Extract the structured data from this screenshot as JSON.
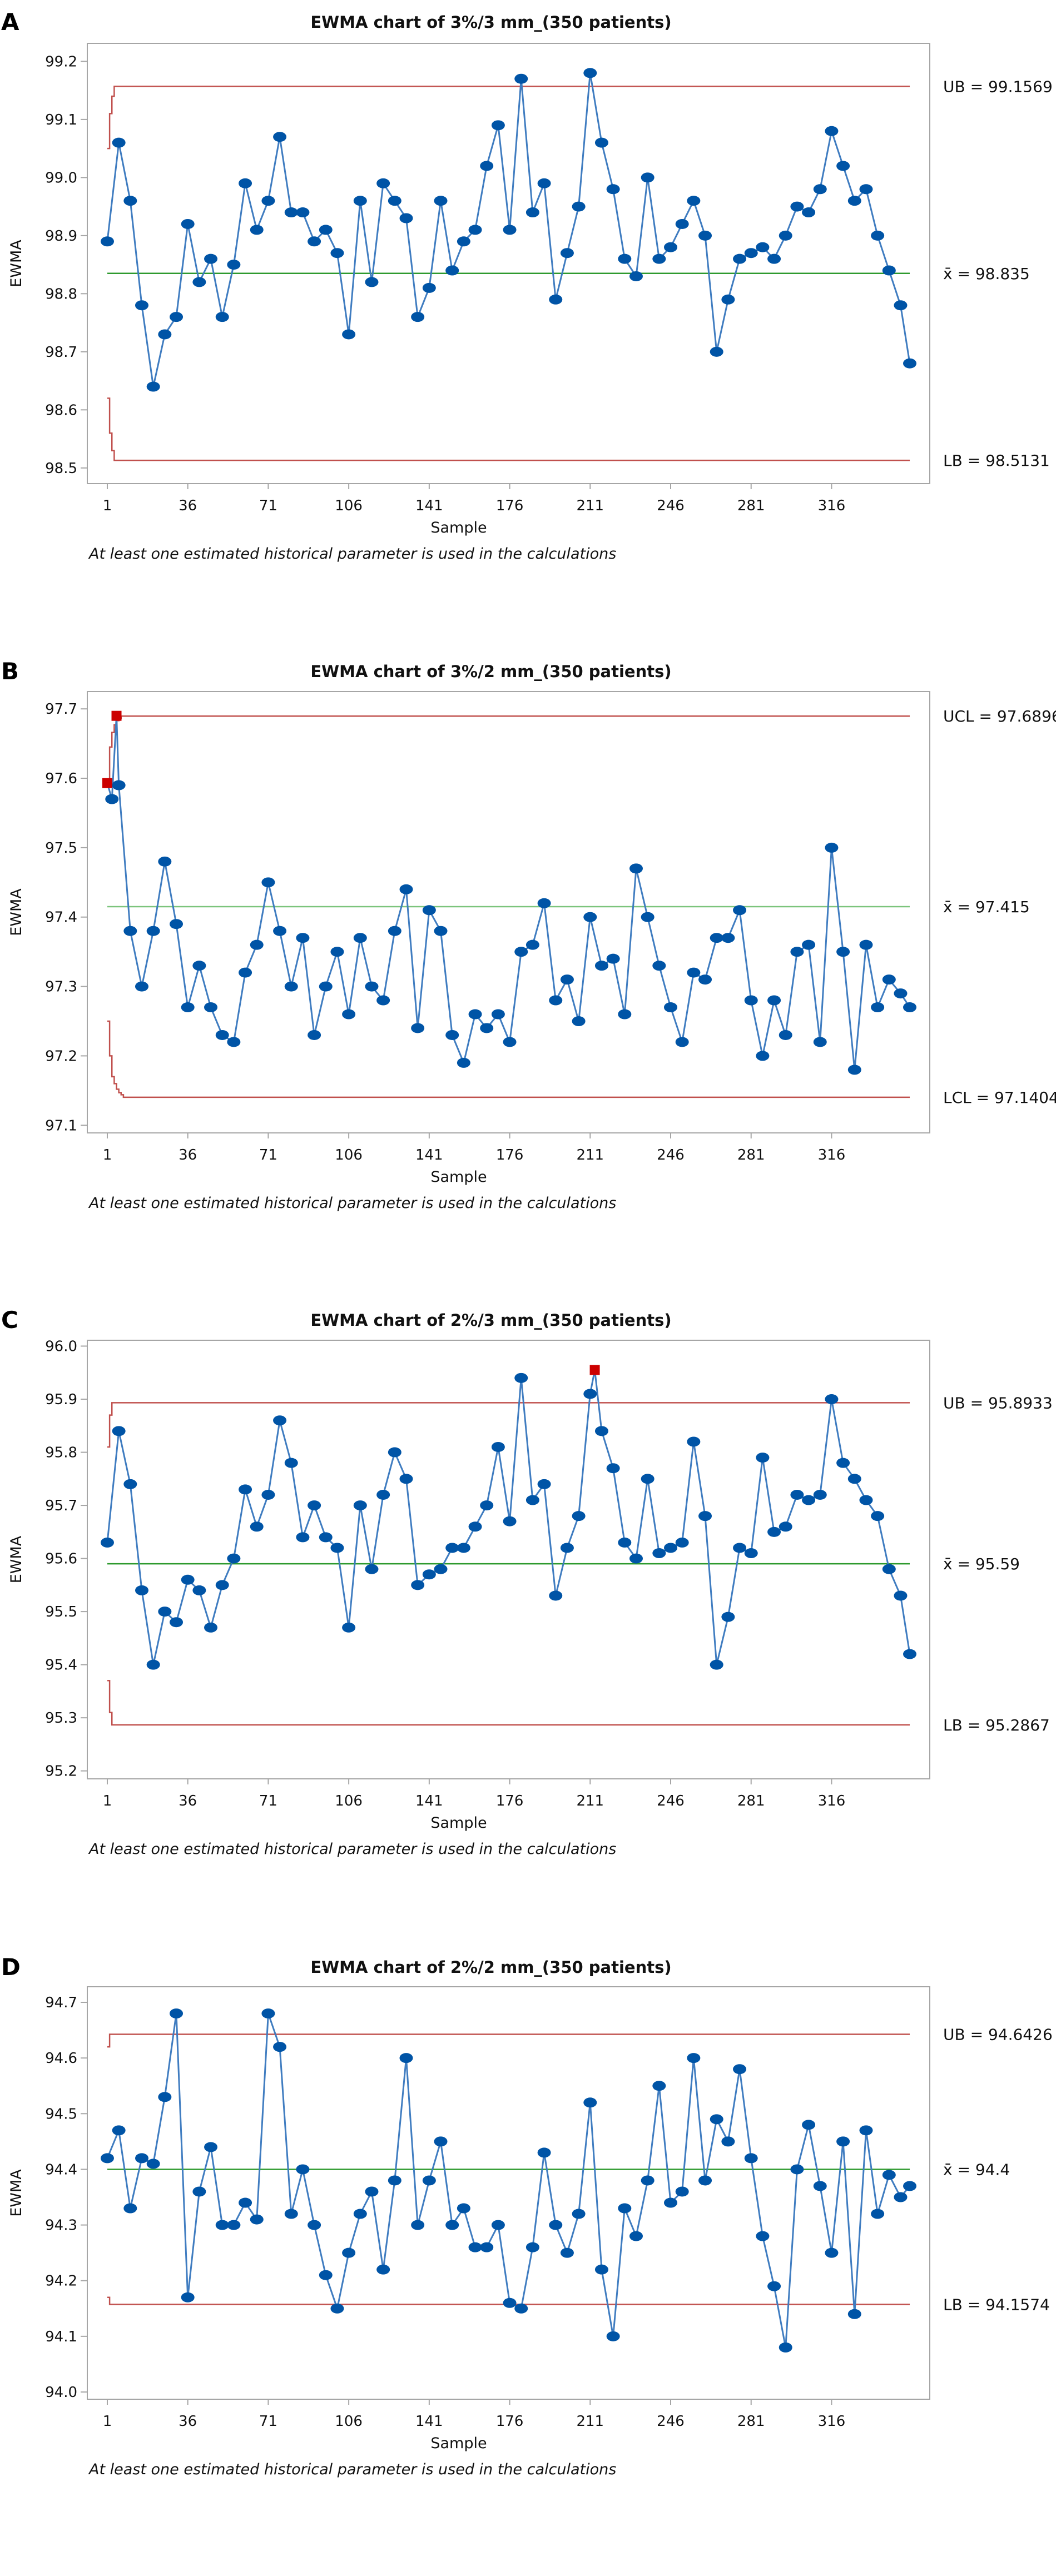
{
  "chart_data": [
    {
      "type": "line",
      "panel": "A",
      "title": "EWMA chart of 3%/3 mm_(350 patients)",
      "xlabel": "Sample",
      "ylabel": "EWMA",
      "footnote": "At least one estimated historical parameter is used in the calculations",
      "xticks": [
        1,
        36,
        71,
        106,
        141,
        176,
        211,
        246,
        281,
        316
      ],
      "yticks": [
        98.5,
        98.6,
        98.7,
        98.8,
        98.9,
        99.0,
        99.1,
        99.2
      ],
      "ytick_labels": [
        "98.5",
        "98.6",
        "98.7",
        "98.8",
        "98.9",
        "99.0",
        "99.1",
        "99.2"
      ],
      "xlim": [
        -7.7,
        358.7
      ],
      "ylim": [
        98.473,
        99.231
      ],
      "upper": {
        "label": "UB = 99.1569",
        "value": 99.1569,
        "startup": [
          99.05,
          99.11,
          99.14
        ]
      },
      "center": {
        "label": "x̄ = 98.835",
        "value": 98.835
      },
      "lower": {
        "label": "LB = 98.5131",
        "value": 98.5131,
        "startup": [
          98.62,
          98.56,
          98.53
        ]
      },
      "x": [
        1,
        6,
        11,
        16,
        21,
        26,
        31,
        36,
        41,
        46,
        51,
        56,
        61,
        66,
        71,
        76,
        81,
        86,
        91,
        96,
        101,
        106,
        111,
        116,
        121,
        126,
        131,
        136,
        141,
        146,
        151,
        156,
        161,
        166,
        171,
        176,
        181,
        186,
        191,
        196,
        201,
        206,
        211,
        216,
        221,
        226,
        231,
        236,
        241,
        246,
        251,
        256,
        261,
        266,
        271,
        276,
        281,
        286,
        291,
        296,
        301,
        306,
        311,
        316,
        321,
        326,
        331,
        336,
        341,
        346,
        350
      ],
      "values": [
        98.89,
        99.06,
        98.96,
        98.78,
        98.64,
        98.73,
        98.76,
        98.92,
        98.82,
        98.86,
        98.76,
        98.85,
        98.99,
        98.91,
        98.96,
        99.07,
        98.94,
        98.94,
        98.89,
        98.91,
        98.87,
        98.73,
        98.96,
        98.82,
        98.99,
        98.96,
        98.93,
        98.76,
        98.81,
        98.96,
        98.84,
        98.89,
        98.91,
        99.02,
        99.09,
        98.91,
        99.17,
        98.94,
        98.99,
        98.79,
        98.87,
        98.95,
        99.18,
        99.06,
        98.98,
        98.86,
        98.83,
        99.0,
        98.86,
        98.88,
        98.92,
        98.96,
        98.9,
        98.7,
        98.79,
        98.86,
        98.87,
        98.88,
        98.86,
        98.9,
        98.95,
        98.94,
        98.98,
        99.08,
        99.02,
        98.96,
        98.98,
        98.9,
        98.84,
        98.78,
        98.68
      ],
      "flagged": [],
      "colors": {
        "points": "#0054a6",
        "line": "#3f7cc0",
        "limits": "#c0504d",
        "center": "#2e9a2e",
        "flagged": "#cc0000"
      }
    },
    {
      "type": "line",
      "panel": "B",
      "title": "EWMA chart of 3%/2 mm_(350 patients)",
      "xlabel": "Sample",
      "ylabel": "EWMA",
      "footnote": "At least one estimated historical parameter is used in the calculations",
      "xticks": [
        1,
        36,
        71,
        106,
        141,
        176,
        211,
        246,
        281,
        316
      ],
      "yticks": [
        97.1,
        97.2,
        97.3,
        97.4,
        97.5,
        97.6,
        97.7
      ],
      "ytick_labels": [
        "97.1",
        "97.2",
        "97.3",
        "97.4",
        "97.5",
        "97.6",
        "97.7"
      ],
      "xlim": [
        -7.7,
        358.7
      ],
      "ylim": [
        97.089,
        97.725
      ],
      "upper": {
        "label": "UCL = 97.6896",
        "value": 97.6896,
        "startup": [
          97.594,
          97.645,
          97.666,
          97.677,
          97.683,
          97.686
        ]
      },
      "center": {
        "label": "x̄ = 97.415",
        "value": 97.415
      },
      "lower": {
        "label": "LCL = 97.1404",
        "value": 97.1404,
        "startup": [
          97.25,
          97.2,
          97.17,
          97.16,
          97.152,
          97.147,
          97.144
        ]
      },
      "x": [
        1,
        3,
        5,
        6,
        11,
        16,
        21,
        26,
        31,
        36,
        41,
        46,
        51,
        56,
        61,
        66,
        71,
        76,
        81,
        86,
        91,
        96,
        101,
        106,
        111,
        116,
        121,
        126,
        131,
        136,
        141,
        146,
        151,
        156,
        161,
        166,
        171,
        176,
        181,
        186,
        191,
        196,
        201,
        206,
        211,
        216,
        221,
        226,
        231,
        236,
        241,
        246,
        251,
        256,
        261,
        266,
        271,
        276,
        281,
        286,
        291,
        296,
        301,
        306,
        311,
        316,
        321,
        326,
        331,
        336,
        341,
        346,
        350
      ],
      "values": [
        97.593,
        97.57,
        97.69,
        97.59,
        97.38,
        97.3,
        97.38,
        97.48,
        97.39,
        97.27,
        97.33,
        97.27,
        97.23,
        97.22,
        97.32,
        97.36,
        97.45,
        97.38,
        97.3,
        97.37,
        97.23,
        97.3,
        97.35,
        97.26,
        97.37,
        97.3,
        97.28,
        97.38,
        97.44,
        97.24,
        97.41,
        97.38,
        97.23,
        97.19,
        97.26,
        97.24,
        97.26,
        97.22,
        97.35,
        97.36,
        97.42,
        97.28,
        97.31,
        97.25,
        97.4,
        97.33,
        97.34,
        97.26,
        97.47,
        97.4,
        97.33,
        97.27,
        97.22,
        97.32,
        97.31,
        97.37,
        97.37,
        97.41,
        97.28,
        97.2,
        97.28,
        97.23,
        97.35,
        97.36,
        97.22,
        97.5,
        97.35,
        97.18,
        97.36,
        97.27,
        97.31,
        97.29,
        97.27
      ],
      "flagged": [
        {
          "x": 1,
          "y": 97.593
        },
        {
          "x": 5,
          "y": 97.69
        }
      ],
      "colors": {
        "points": "#0054a6",
        "line": "#3f7cc0",
        "limits": "#c0504d",
        "center": "#7cc47c",
        "flagged": "#cc0000"
      }
    },
    {
      "type": "line",
      "panel": "C",
      "title": "EWMA chart of 2%/3 mm_(350 patients)",
      "xlabel": "Sample",
      "ylabel": "EWMA",
      "footnote": "At least one estimated historical parameter is used in the calculations",
      "xticks": [
        1,
        36,
        71,
        106,
        141,
        176,
        211,
        246,
        281,
        316
      ],
      "yticks": [
        95.2,
        95.3,
        95.4,
        95.5,
        95.6,
        95.7,
        95.8,
        95.9,
        96.0
      ],
      "ytick_labels": [
        "95.2",
        "95.3",
        "95.4",
        "95.5",
        "95.6",
        "95.7",
        "95.8",
        "95.9",
        "96.0"
      ],
      "xlim": [
        -7.7,
        358.7
      ],
      "ylim": [
        95.185,
        96.011
      ],
      "upper": {
        "label": "UB = 95.8933",
        "value": 95.8933,
        "startup": [
          95.81,
          95.87
        ]
      },
      "center": {
        "label": "x̄ = 95.59",
        "value": 95.59
      },
      "lower": {
        "label": "LB = 95.2867",
        "value": 95.2867,
        "startup": [
          95.37,
          95.31
        ]
      },
      "x": [
        1,
        6,
        11,
        16,
        21,
        26,
        31,
        36,
        41,
        46,
        51,
        56,
        61,
        66,
        71,
        76,
        81,
        86,
        91,
        96,
        101,
        106,
        111,
        116,
        121,
        126,
        131,
        136,
        141,
        146,
        151,
        156,
        161,
        166,
        171,
        176,
        181,
        186,
        191,
        196,
        201,
        206,
        211,
        213,
        216,
        221,
        226,
        231,
        236,
        241,
        246,
        251,
        256,
        261,
        266,
        271,
        276,
        281,
        286,
        291,
        296,
        301,
        306,
        311,
        316,
        321,
        326,
        331,
        336,
        341,
        346,
        350
      ],
      "values": [
        95.63,
        95.84,
        95.74,
        95.54,
        95.4,
        95.5,
        95.48,
        95.56,
        95.54,
        95.47,
        95.55,
        95.6,
        95.73,
        95.66,
        95.72,
        95.86,
        95.78,
        95.64,
        95.7,
        95.64,
        95.62,
        95.47,
        95.7,
        95.58,
        95.72,
        95.8,
        95.75,
        95.55,
        95.57,
        95.58,
        95.62,
        95.62,
        95.66,
        95.7,
        95.81,
        95.67,
        95.94,
        95.71,
        95.74,
        95.53,
        95.62,
        95.68,
        95.91,
        95.955,
        95.84,
        95.77,
        95.63,
        95.6,
        95.75,
        95.61,
        95.62,
        95.63,
        95.82,
        95.68,
        95.4,
        95.49,
        95.62,
        95.61,
        95.79,
        95.65,
        95.66,
        95.72,
        95.71,
        95.72,
        95.9,
        95.78,
        95.75,
        95.71,
        95.68,
        95.58,
        95.53,
        95.42
      ],
      "flagged": [
        {
          "x": 213,
          "y": 95.955
        }
      ],
      "colors": {
        "points": "#0054a6",
        "line": "#3f7cc0",
        "limits": "#c0504d",
        "center": "#2e9a2e",
        "flagged": "#cc0000"
      }
    },
    {
      "type": "line",
      "panel": "D",
      "title": "EWMA chart of 2%/2 mm_(350 patients)",
      "xlabel": "Sample",
      "ylabel": "EWMA",
      "footnote": "At least one estimated historical parameter is used in the calculations",
      "xticks": [
        1,
        36,
        71,
        106,
        141,
        176,
        211,
        246,
        281,
        316
      ],
      "yticks": [
        94.0,
        94.1,
        94.2,
        94.3,
        94.4,
        94.5,
        94.6,
        94.7
      ],
      "ytick_labels": [
        "94.0",
        "94.1",
        "94.2",
        "94.3",
        "94.4",
        "94.5",
        "94.6",
        "94.7"
      ],
      "xlim": [
        -7.7,
        358.7
      ],
      "ylim": [
        93.987,
        94.728
      ],
      "upper": {
        "label": "UB = 94.6426",
        "value": 94.6426,
        "startup": [
          94.62
        ]
      },
      "center": {
        "label": "x̄ = 94.4",
        "value": 94.4
      },
      "lower": {
        "label": "LB = 94.1574",
        "value": 94.1574,
        "startup": [
          94.17
        ]
      },
      "x": [
        1,
        6,
        11,
        16,
        21,
        26,
        31,
        36,
        41,
        46,
        51,
        56,
        61,
        66,
        71,
        76,
        81,
        86,
        91,
        96,
        101,
        106,
        111,
        116,
        121,
        126,
        131,
        136,
        141,
        146,
        151,
        156,
        161,
        166,
        171,
        176,
        181,
        186,
        191,
        196,
        201,
        206,
        211,
        216,
        221,
        226,
        231,
        236,
        241,
        246,
        251,
        256,
        261,
        266,
        271,
        276,
        281,
        286,
        291,
        296,
        301,
        306,
        311,
        316,
        321,
        326,
        331,
        336,
        341,
        346,
        350
      ],
      "values": [
        94.42,
        94.47,
        94.33,
        94.42,
        94.41,
        94.53,
        94.68,
        94.17,
        94.36,
        94.44,
        94.3,
        94.3,
        94.34,
        94.31,
        94.68,
        94.62,
        94.32,
        94.4,
        94.3,
        94.21,
        94.15,
        94.25,
        94.32,
        94.36,
        94.22,
        94.38,
        94.6,
        94.3,
        94.38,
        94.45,
        94.3,
        94.33,
        94.26,
        94.26,
        94.3,
        94.16,
        94.15,
        94.26,
        94.43,
        94.3,
        94.25,
        94.32,
        94.52,
        94.22,
        94.1,
        94.33,
        94.28,
        94.38,
        94.55,
        94.34,
        94.36,
        94.6,
        94.38,
        94.49,
        94.45,
        94.58,
        94.42,
        94.28,
        94.19,
        94.08,
        94.4,
        94.48,
        94.37,
        94.25,
        94.45,
        94.14,
        94.47,
        94.32,
        94.39,
        94.35,
        94.37
      ],
      "flagged": [],
      "colors": {
        "points": "#0054a6",
        "line": "#3f7cc0",
        "limits": "#c0504d",
        "center": "#2e9a2e",
        "flagged": "#cc0000"
      }
    }
  ]
}
